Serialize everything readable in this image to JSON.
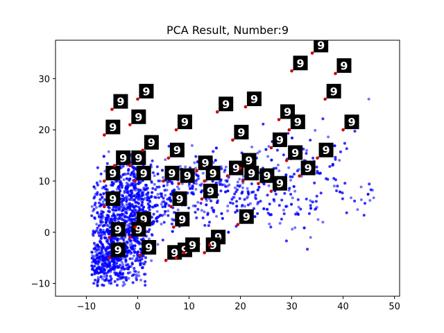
{
  "chart_data": {
    "type": "scatter",
    "title": "PCA Result, Number:9",
    "xlabel": "",
    "ylabel": "",
    "xlim": [
      -16,
      51
    ],
    "ylim": [
      -12.5,
      37.5
    ],
    "x_ticks": [
      -10,
      0,
      10,
      20,
      30,
      40,
      50
    ],
    "y_ticks": [
      -10,
      0,
      10,
      20,
      30
    ],
    "grid": false,
    "colors": {
      "points": "#0000ff",
      "highlight": "#cc0000",
      "thumb_bg": "#000000",
      "thumb_digit": "#ffffff"
    },
    "scatter_density": {
      "description_note": "",
      "dense_core": {
        "x": [
          -8,
          10
        ],
        "y": [
          -10,
          14
        ]
      },
      "outlier_max": [
        45,
        26
      ]
    },
    "highlighted_points": [
      [
        34,
        35
      ],
      [
        30,
        31.5
      ],
      [
        38.5,
        31
      ],
      [
        36.5,
        26
      ],
      [
        -5,
        24
      ],
      [
        0,
        26
      ],
      [
        15.5,
        23.5
      ],
      [
        21,
        24.5
      ],
      [
        27.5,
        22
      ],
      [
        -1.5,
        21
      ],
      [
        -6.5,
        19
      ],
      [
        7.5,
        20
      ],
      [
        40,
        20
      ],
      [
        29.5,
        20
      ],
      [
        18.5,
        18
      ],
      [
        26,
        16.5
      ],
      [
        1,
        16
      ],
      [
        -4.5,
        13
      ],
      [
        -1.5,
        13
      ],
      [
        6,
        14.5
      ],
      [
        11.5,
        12
      ],
      [
        20,
        12.5
      ],
      [
        29,
        14
      ],
      [
        35,
        14.5
      ],
      [
        31.5,
        11
      ],
      [
        -6.5,
        10
      ],
      [
        -0.5,
        10
      ],
      [
        5,
        10
      ],
      [
        8,
        9.5
      ],
      [
        13,
        10
      ],
      [
        17.5,
        11
      ],
      [
        20.5,
        10
      ],
      [
        23.5,
        9.5
      ],
      [
        26,
        8
      ],
      [
        12.5,
        6.5
      ],
      [
        -6.5,
        5
      ],
      [
        6.5,
        5
      ],
      [
        7,
        1
      ],
      [
        19.5,
        1.5
      ],
      [
        -0.5,
        1
      ],
      [
        -5.5,
        -1
      ],
      [
        -1.5,
        -1
      ],
      [
        14,
        -2.5
      ],
      [
        13,
        -4
      ],
      [
        0.5,
        -4.5
      ],
      [
        -5.5,
        -5
      ],
      [
        5.5,
        -5.5
      ],
      [
        7.5,
        -5
      ],
      [
        9,
        -4
      ]
    ],
    "thumbnails": [
      {
        "anchor": [
          34,
          35
        ],
        "digit": "9"
      },
      {
        "anchor": [
          30,
          31.5
        ],
        "digit": "9"
      },
      {
        "anchor": [
          38.5,
          31
        ],
        "digit": "9"
      },
      {
        "anchor": [
          36.5,
          26
        ],
        "digit": "9"
      },
      {
        "anchor": [
          -5,
          24
        ],
        "digit": "9"
      },
      {
        "anchor": [
          0,
          26
        ],
        "digit": "9"
      },
      {
        "anchor": [
          15.5,
          23.5
        ],
        "digit": "9"
      },
      {
        "anchor": [
          21,
          24.5
        ],
        "digit": "9"
      },
      {
        "anchor": [
          27.5,
          22
        ],
        "digit": "9"
      },
      {
        "anchor": [
          -1.5,
          21
        ],
        "digit": "9"
      },
      {
        "anchor": [
          -6.5,
          19
        ],
        "digit": "9"
      },
      {
        "anchor": [
          7.5,
          20
        ],
        "digit": "9"
      },
      {
        "anchor": [
          40,
          20
        ],
        "digit": "9"
      },
      {
        "anchor": [
          29.5,
          20
        ],
        "digit": "9"
      },
      {
        "anchor": [
          18.5,
          18
        ],
        "digit": "9"
      },
      {
        "anchor": [
          26,
          16.5
        ],
        "digit": "9"
      },
      {
        "anchor": [
          1,
          16
        ],
        "digit": "9"
      },
      {
        "anchor": [
          -4.5,
          13
        ],
        "digit": "9"
      },
      {
        "anchor": [
          -1.5,
          13
        ],
        "digit": "9"
      },
      {
        "anchor": [
          6,
          14.5
        ],
        "digit": "9"
      },
      {
        "anchor": [
          11.5,
          12
        ],
        "digit": "9"
      },
      {
        "anchor": [
          20,
          12.5
        ],
        "digit": "9"
      },
      {
        "anchor": [
          29,
          14
        ],
        "digit": "9"
      },
      {
        "anchor": [
          35,
          14.5
        ],
        "digit": "9"
      },
      {
        "anchor": [
          31.5,
          11
        ],
        "digit": "9"
      },
      {
        "anchor": [
          -6.5,
          10
        ],
        "digit": "9"
      },
      {
        "anchor": [
          -0.5,
          10
        ],
        "digit": "9"
      },
      {
        "anchor": [
          5,
          10
        ],
        "digit": "9"
      },
      {
        "anchor": [
          8,
          9.5
        ],
        "digit": "9"
      },
      {
        "anchor": [
          13,
          10
        ],
        "digit": "9"
      },
      {
        "anchor": [
          17.5,
          11
        ],
        "digit": "9"
      },
      {
        "anchor": [
          20.5,
          10
        ],
        "digit": "9"
      },
      {
        "anchor": [
          23.5,
          9.5
        ],
        "digit": "9"
      },
      {
        "anchor": [
          26,
          8
        ],
        "digit": "9"
      },
      {
        "anchor": [
          12.5,
          6.5
        ],
        "digit": "9"
      },
      {
        "anchor": [
          -6.5,
          5
        ],
        "digit": "9"
      },
      {
        "anchor": [
          6.5,
          5
        ],
        "digit": "9"
      },
      {
        "anchor": [
          7,
          1
        ],
        "digit": "9"
      },
      {
        "anchor": [
          19.5,
          1.5
        ],
        "digit": "9"
      },
      {
        "anchor": [
          -0.5,
          1
        ],
        "digit": "9"
      },
      {
        "anchor": [
          -5.5,
          -1
        ],
        "digit": "9"
      },
      {
        "anchor": [
          -1.5,
          -1
        ],
        "digit": "9"
      },
      {
        "anchor": [
          14,
          -2.5
        ],
        "digit": "9"
      },
      {
        "anchor": [
          13,
          -4
        ],
        "digit": "9"
      },
      {
        "anchor": [
          0.5,
          -4.5
        ],
        "digit": "9"
      },
      {
        "anchor": [
          -5.5,
          -5
        ],
        "digit": "9"
      },
      {
        "anchor": [
          5.5,
          -5.5
        ],
        "digit": "9"
      },
      {
        "anchor": [
          7.5,
          -5
        ],
        "digit": "9"
      },
      {
        "anchor": [
          9,
          -4
        ],
        "digit": "9"
      }
    ]
  }
}
